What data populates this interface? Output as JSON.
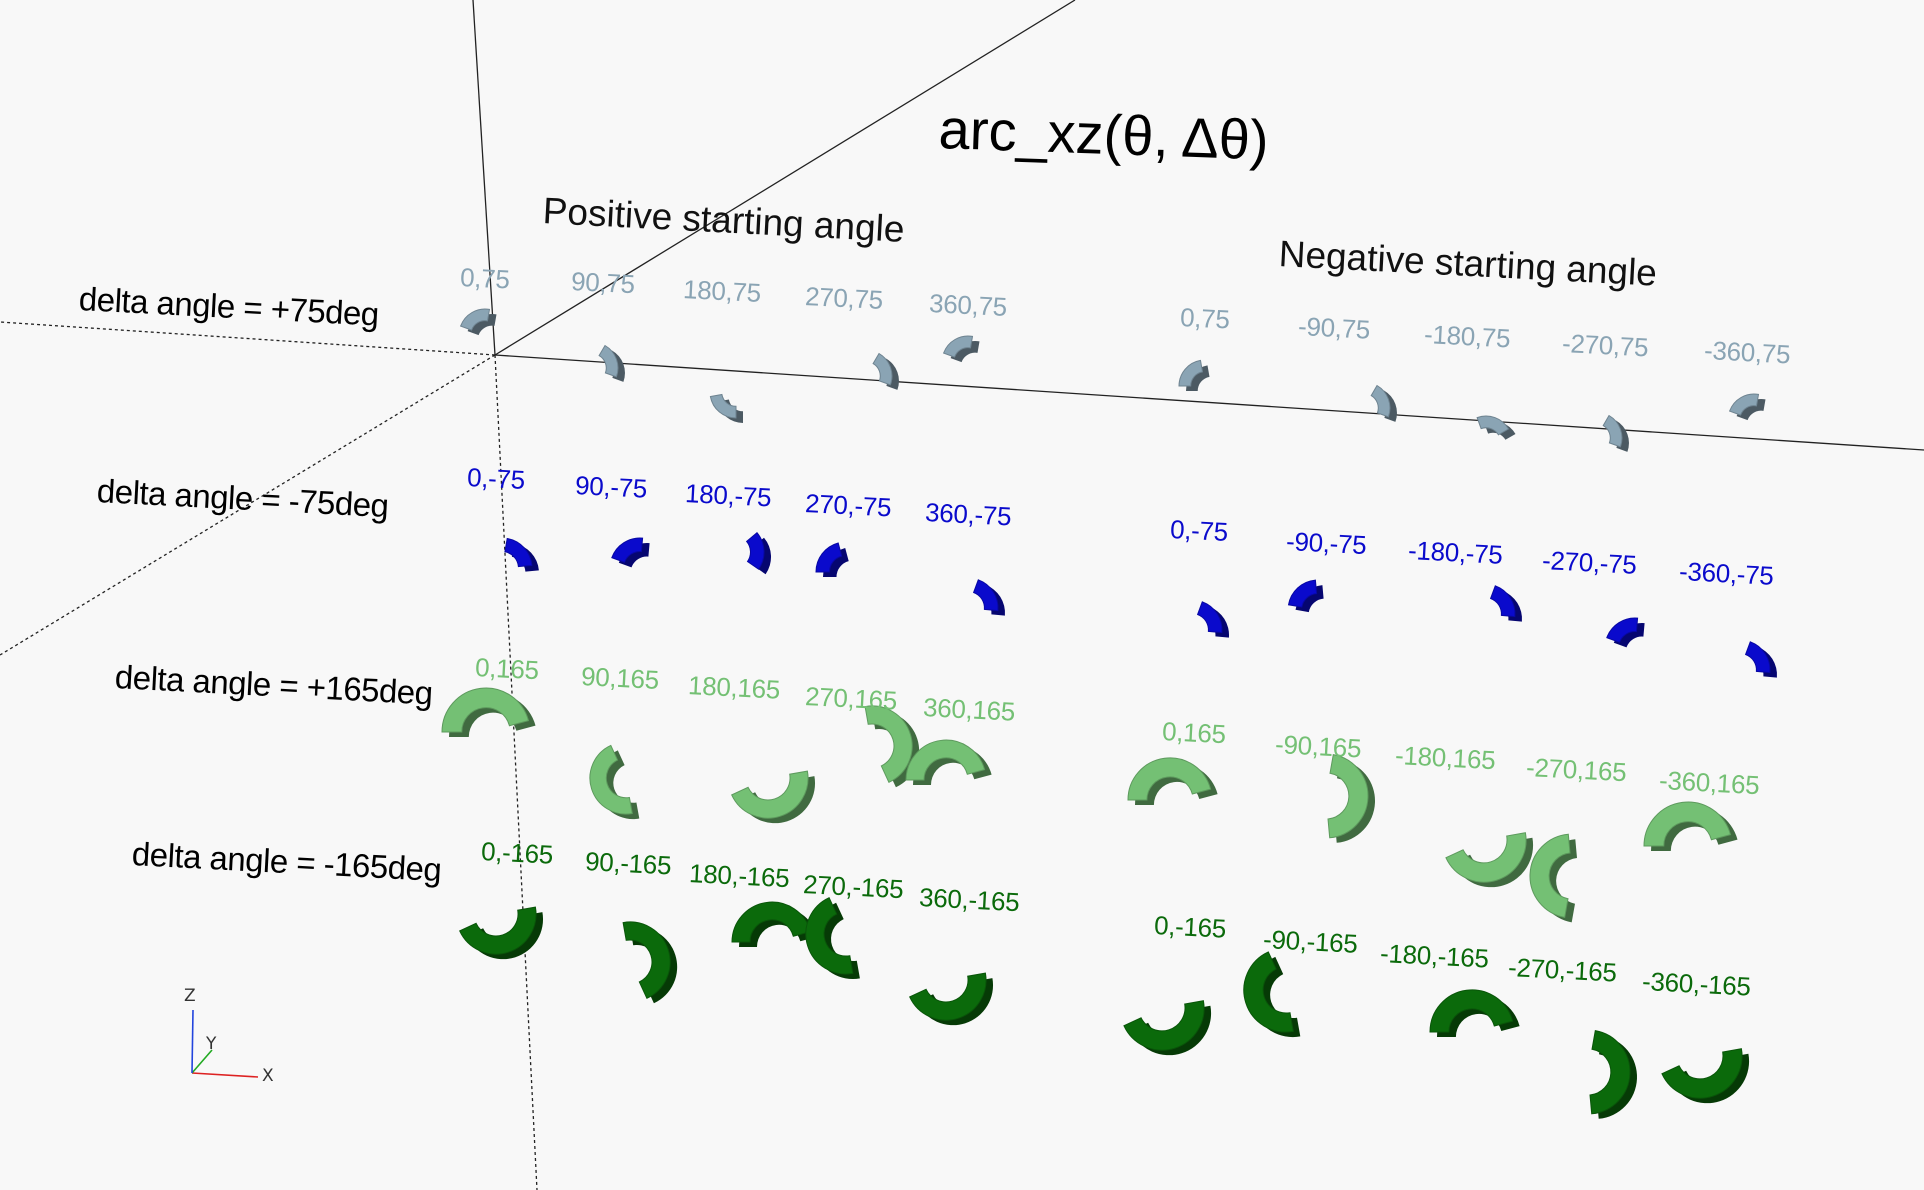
{
  "title": "arc_xz(θ, Δθ)",
  "headings": {
    "positive": "Positive starting angle",
    "negative": "Negative starting angle"
  },
  "row_labels": [
    "delta angle = +75deg",
    "delta angle = -75deg",
    "delta angle = +165deg",
    "delta angle = -165deg"
  ],
  "rows": [
    {
      "color": "#8aa4b4",
      "positive": [
        "0,75",
        "90,75",
        "180,75",
        "270,75",
        "360,75"
      ],
      "negative": [
        "0,75",
        "-90,75",
        "-180,75",
        "-270,75",
        "-360,75"
      ]
    },
    {
      "color": "#0a0acc",
      "positive": [
        "0,-75",
        "90,-75",
        "180,-75",
        "270,-75",
        "360,-75"
      ],
      "negative": [
        "0,-75",
        "-90,-75",
        "-180,-75",
        "-270,-75",
        "-360,-75"
      ]
    },
    {
      "color": "#74c074",
      "positive": [
        "0,165",
        "90,165",
        "180,165",
        "270,165",
        "360,165"
      ],
      "negative": [
        "0,165",
        "-90,165",
        "-180,165",
        "-270,165",
        "-360,165"
      ]
    },
    {
      "color": "#0b6a0b",
      "positive": [
        "0,-165",
        "90,-165",
        "180,-165",
        "270,-165",
        "360,-165"
      ],
      "negative": [
        "0,-165",
        "-90,-165",
        "-180,-165",
        "-270,-165",
        "-360,-165"
      ]
    }
  ],
  "axis_gizmo": {
    "x": "X",
    "y": "Y",
    "z": "Z"
  },
  "colors": {
    "background": "#f8f8f8",
    "axis_x": "#dd2222",
    "axis_y": "#22aa22",
    "axis_z": "#2244dd"
  }
}
